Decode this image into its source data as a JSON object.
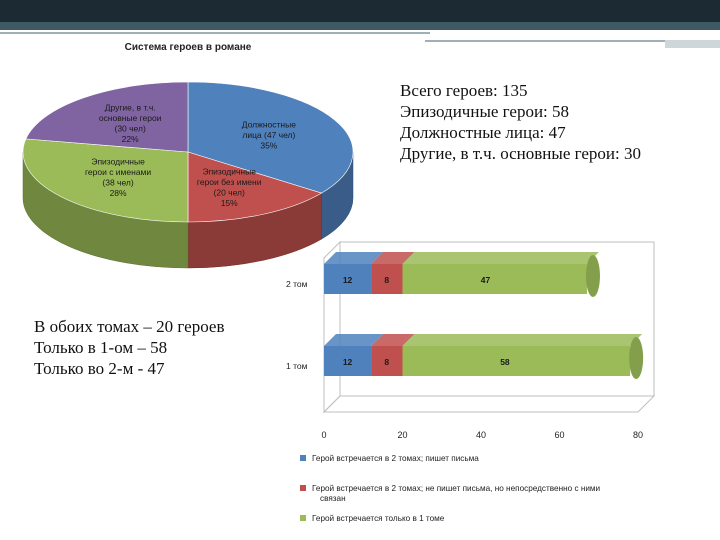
{
  "summary": {
    "lines": [
      "Всего героев: 135",
      "Эпизодичные герои: 58",
      "Должностные лица: 47",
      "Другие, в т.ч. основные герои: 30"
    ]
  },
  "volumes": {
    "lines": [
      "В обоих томах – 20 героев",
      "Только в 1-ом – 58",
      "Только во 2-м - 47"
    ]
  },
  "colors": {
    "blue": "#4f81bd",
    "red": "#c0504d",
    "green": "#9bbb59",
    "purple": "#8064a2"
  },
  "chart_data": [
    {
      "type": "pie",
      "title": "Система героев в романе",
      "slices": [
        {
          "label": "Должностные лица (47 чел) 35%",
          "lines": [
            "Должностные",
            "лица (47 чел)",
            "35%"
          ],
          "value": 35,
          "color": "#4f81bd"
        },
        {
          "label": "Эпизодичные герои без имени (20 чел) 15%",
          "lines": [
            "Эпизодичные",
            "герои без имени",
            "(20 чел)",
            "15%"
          ],
          "value": 15,
          "color": "#c0504d"
        },
        {
          "label": "Эпизодичные герои с именами (38 чел) 28%",
          "lines": [
            "Эпизодичные",
            "герои с именами",
            "(38 чел)",
            "28%"
          ],
          "value": 28,
          "color": "#9bbb59"
        },
        {
          "label": "Другие, в т.ч. основные герои (30 чел) 22%",
          "lines": [
            "Другие, в т.ч.",
            "основные герои",
            "(30 чел)",
            "22%"
          ],
          "value": 22,
          "color": "#8064a2"
        }
      ]
    },
    {
      "type": "bar",
      "orientation": "horizontal",
      "stacked": true,
      "categories": [
        "2 том",
        "1 том"
      ],
      "xlim": [
        0,
        80
      ],
      "xticks": [
        "0",
        "20",
        "40",
        "60",
        "80"
      ],
      "series": [
        {
          "name": "Герой встречается в 2 томах; пишет письма",
          "values": [
            12,
            12
          ],
          "color": "#4f81bd"
        },
        {
          "name": "Герой встречается в 2 томах; не пишет письма, но непосредственно с ними связан",
          "values": [
            8,
            8
          ],
          "color": "#c0504d"
        },
        {
          "name": "Герой встречается только в 1 томе",
          "values": [
            47,
            58
          ],
          "color": "#9bbb59"
        }
      ],
      "legend_position": "bottom"
    }
  ]
}
